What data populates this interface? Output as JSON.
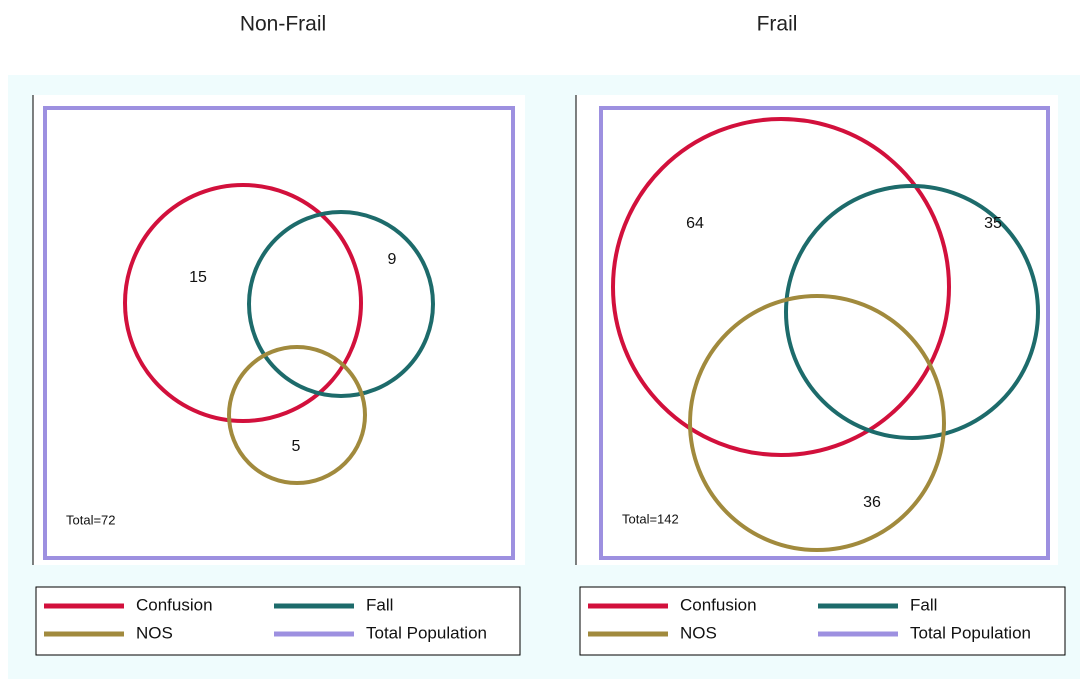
{
  "chart_data": [
    {
      "type": "venn",
      "title": "Non-Frail",
      "sets": [
        {
          "name": "Confusion",
          "color": "#d2103c"
        },
        {
          "name": "Fall",
          "color": "#1d6b6b"
        },
        {
          "name": "NOS",
          "color": "#a18a3d"
        }
      ],
      "universe": {
        "name": "Total Population",
        "color": "#9d90e0"
      },
      "region_values": [
        15,
        9,
        5
      ],
      "total": "Total=72"
    },
    {
      "type": "venn",
      "title": "Frail",
      "sets": [
        {
          "name": "Confusion",
          "color": "#d2103c"
        },
        {
          "name": "Fall",
          "color": "#1d6b6b"
        },
        {
          "name": "NOS",
          "color": "#a18a3d"
        }
      ],
      "universe": {
        "name": "Total Population",
        "color": "#9d90e0"
      },
      "region_values": [
        64,
        35,
        36
      ],
      "total": "Total=142"
    }
  ]
}
